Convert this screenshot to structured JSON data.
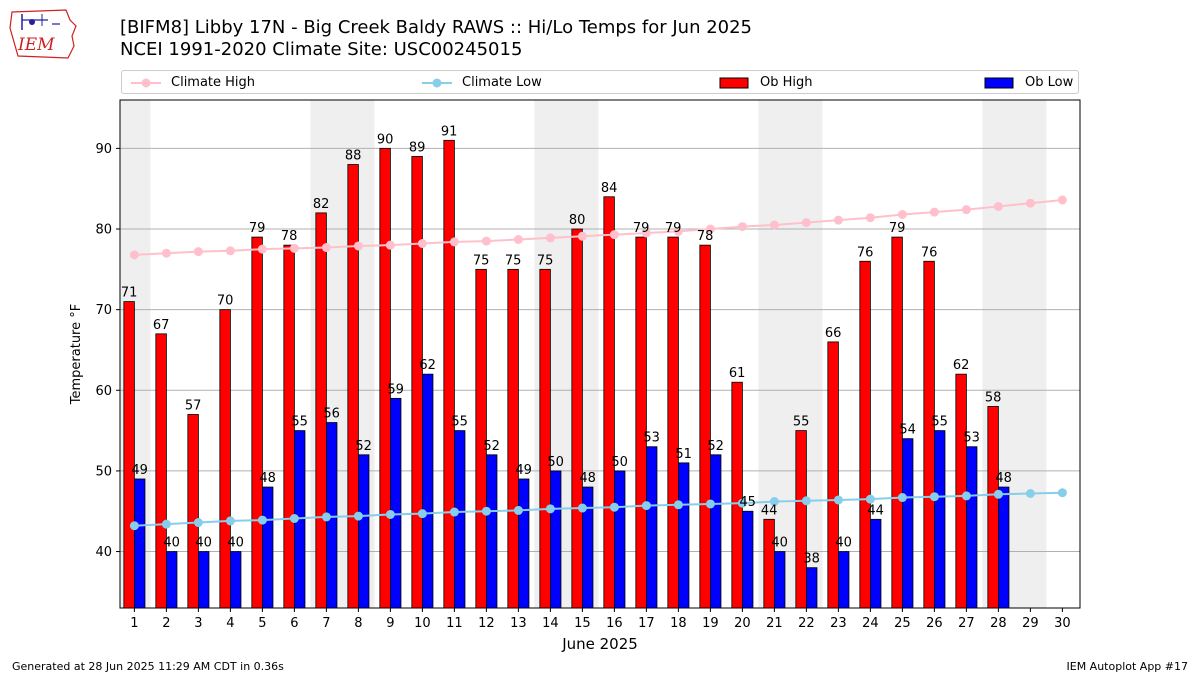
{
  "header": {
    "logo_text": "IEM",
    "title_line1": "[BIFM8] Libby 17N - Big Creek Baldy RAWS :: Hi/Lo Temps for Jun 2025",
    "title_line2": "NCEI 1991-2020 Climate Site: USC00245015"
  },
  "footer": {
    "generated": "Generated at 28 Jun 2025 11:29 AM CDT in 0.36s",
    "app": "IEM Autoplot App #17"
  },
  "chart_data": {
    "type": "bar",
    "xlabel": "June 2025",
    "ylabel": "Temperature °F",
    "ylim": [
      33,
      96
    ],
    "yticks": [
      40,
      50,
      60,
      70,
      80,
      90
    ],
    "grid": "horizontal",
    "legend_position": "top",
    "weekend_shading_days": [
      1,
      7,
      8,
      14,
      15,
      21,
      22,
      28,
      29
    ],
    "categories": [
      1,
      2,
      3,
      4,
      5,
      6,
      7,
      8,
      9,
      10,
      11,
      12,
      13,
      14,
      15,
      16,
      17,
      18,
      19,
      20,
      21,
      22,
      23,
      24,
      25,
      26,
      27,
      28,
      29,
      30
    ],
    "series": [
      {
        "name": "Climate High",
        "kind": "line",
        "color": "#ffc0cb",
        "values": [
          76.8,
          77.0,
          77.2,
          77.3,
          77.5,
          77.6,
          77.7,
          77.9,
          78.0,
          78.2,
          78.4,
          78.5,
          78.7,
          78.9,
          79.1,
          79.3,
          79.5,
          79.7,
          80.0,
          80.3,
          80.5,
          80.8,
          81.1,
          81.4,
          81.8,
          82.1,
          82.4,
          82.8,
          83.2,
          83.6
        ]
      },
      {
        "name": "Climate Low",
        "kind": "line",
        "color": "#87ceeb",
        "values": [
          43.2,
          43.4,
          43.6,
          43.8,
          43.9,
          44.1,
          44.3,
          44.4,
          44.6,
          44.7,
          44.9,
          45.0,
          45.1,
          45.3,
          45.4,
          45.5,
          45.7,
          45.8,
          45.9,
          46.0,
          46.2,
          46.3,
          46.4,
          46.5,
          46.7,
          46.8,
          46.9,
          47.1,
          47.2,
          47.3
        ]
      },
      {
        "name": "Ob High",
        "kind": "bar",
        "color": "#ff0000",
        "values": [
          71,
          67,
          57,
          70,
          79,
          78,
          82,
          88,
          90,
          89,
          91,
          75,
          75,
          75,
          80,
          84,
          79,
          79,
          78,
          61,
          44,
          55,
          66,
          76,
          79,
          76,
          62,
          58,
          null,
          null
        ]
      },
      {
        "name": "Ob Low",
        "kind": "bar",
        "color": "#0000ff",
        "values": [
          49,
          40,
          40,
          40,
          48,
          55,
          56,
          52,
          59,
          62,
          55,
          52,
          49,
          50,
          48,
          50,
          53,
          51,
          52,
          45,
          40,
          38,
          40,
          44,
          54,
          55,
          53,
          48,
          null,
          null
        ]
      }
    ]
  }
}
